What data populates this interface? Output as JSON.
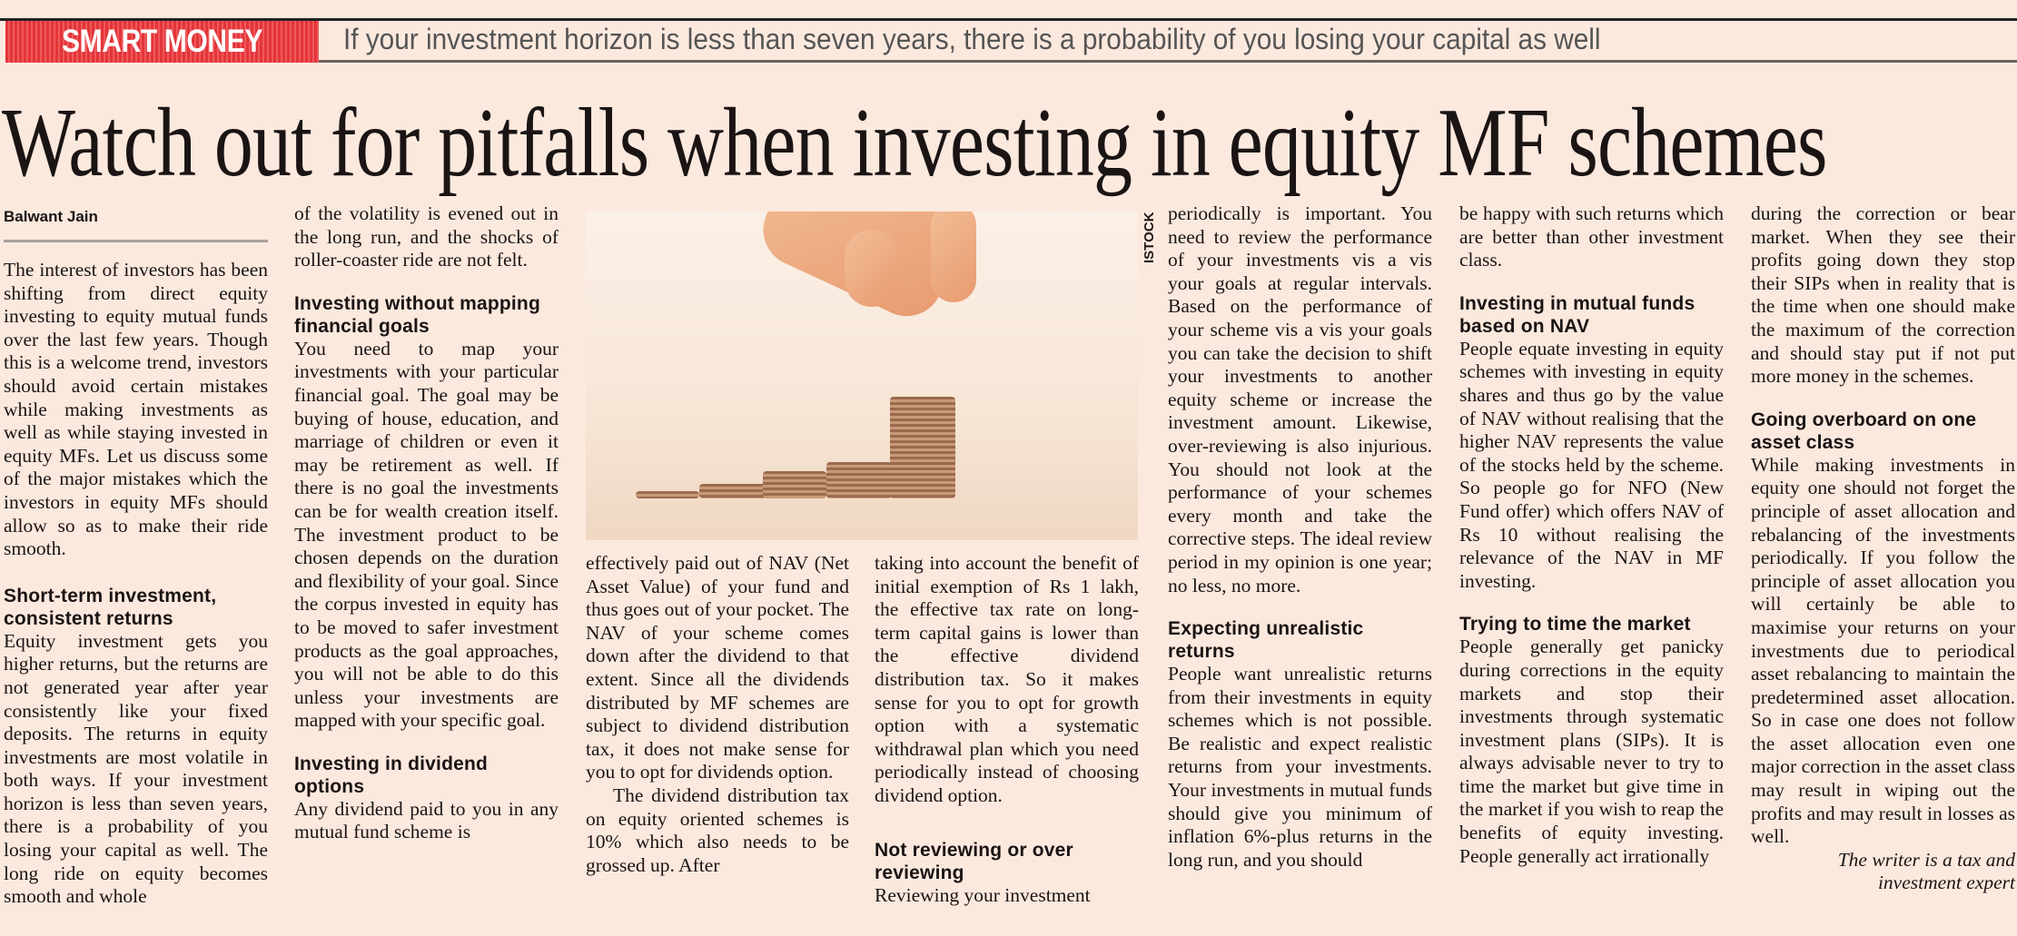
{
  "banner": {
    "kicker": "SMART MONEY",
    "deck": "If your investment horizon is less than seven years, there is a probability of you losing your capital as well",
    "kicker_color": "#e2353a"
  },
  "headline": "Watch out for pitfalls when investing in equity MF schemes",
  "byline": "Balwant Jain",
  "photo_credit": "ISTOCK",
  "columns": {
    "c1": {
      "p1": "The interest of investors has been shifting from direct equity investing to equity mutual funds over the last few years. Though this is a welcome trend, investors should avoid certain mistakes while making investments as well as while staying invested in equity MFs. Let us discuss some of the major mistakes which the investors in equity MFs should allow so as to make their ride smooth.",
      "h1": "Short-term investment, consistent returns",
      "p2": "Equity investment gets you higher returns, but the returns are not generated year after year consistently like your fixed deposits. The returns in equity investments are most volatile in both ways. If your investment horizon is less than seven years, there is a probability of you losing your capital as well. The long ride on equity becomes smooth and whole"
    },
    "c2": {
      "p1": "of the volatility is evened out in the long run, and the shocks of roller-coaster ride are not felt.",
      "h1": "Investing without mapping financial goals",
      "p2": "You need to map your investments with your particular financial goal. The goal may be buying of house, education, and marriage of children or even it may be retirement as well. If there is no goal the investments can be for wealth creation itself. The investment product to be chosen depends on the duration and flexibility of your goal. Since the corpus invested in equity has to be moved to safer investment products as the goal approaches, you will not be able to do this unless your investments are mapped with your specific goal.",
      "h2": "Investing in dividend options",
      "p3": "Any dividend paid to you in any mutual fund scheme is"
    },
    "c3": {
      "p1": "effectively paid out of NAV (Net Asset Value) of your fund and thus goes out of your pocket. The NAV of your scheme comes down after the dividend to that extent. Since all the dividends distributed by MF schemes are subject to dividend distribution tax, it does not make sense for you to opt for dividends option.",
      "p2": "The dividend distribution tax on equity oriented schemes is 10% which also needs to be grossed up. After"
    },
    "c4": {
      "p1": "taking into account the benefit of initial exemption of Rs 1 lakh, the effective tax rate on long-term capital gains is lower than the effective dividend distribution tax. So it makes sense for you to opt for growth option with a systematic withdrawal plan which you need periodically instead of choosing dividend option.",
      "h1": "Not reviewing or over reviewing",
      "p2": "Reviewing your investment"
    },
    "c5": {
      "p1": "periodically is important. You need to review the performance of your investments vis a vis your goals at regular intervals. Based on the performance of your scheme vis a vis your goals you can take the decision to shift your investments to another equity scheme or increase the investment amount. Likewise, over-reviewing is also injurious. You should not look at the performance of your schemes every month and take the corrective steps. The ideal review period in my opinion is one year; no less, no more.",
      "h1": "Expecting unrealistic returns",
      "p2": "People want unrealistic returns from their investments in equity schemes which is not possible. Be realistic and expect realistic returns from your investments. Your investments in mutual funds should give you minimum of inflation 6%-plus returns in the long run, and you should"
    },
    "c6": {
      "p1": "be happy with such returns which are better than other investment class.",
      "h1": "Investing in mutual funds based on NAV",
      "p2": "People equate investing in equity schemes with investing in equity shares and thus go by the value of NAV without realising that the higher NAV represents the value of the stocks held by the scheme. So people go for NFO (New Fund offer) which offers NAV of Rs 10 without realising the relevance of the NAV in MF investing.",
      "h2": "Trying to time the market",
      "p3": "People generally get panicky during corrections in the equity markets and stop their investments through systematic investment plans (SIPs). It is always advisable never to try to time the market but give time in the market if you wish to reap the benefits of equity investing. People generally act irrationally"
    },
    "c7": {
      "p1": "during the correction or bear market. When they see their profits going down they stop their SIPs when in reality that is the time when one should make the maximum of the correction and should stay put if not put more money in the schemes.",
      "h1": "Going overboard on one asset class",
      "p2": "While making investments in equity one should not forget the principle of asset allocation and rebalancing of the investments periodically. If you follow the principle of asset allocation you will certainly be able to maximise your returns on your investments due to periodical asset rebalancing to maintain the predetermined asset allocation. So in case one does not follow the asset allocation even one major correction in the asset class may result in wiping out the profits and may result in losses as well.",
      "tagline": "The writer is a tax and investment expert"
    }
  }
}
